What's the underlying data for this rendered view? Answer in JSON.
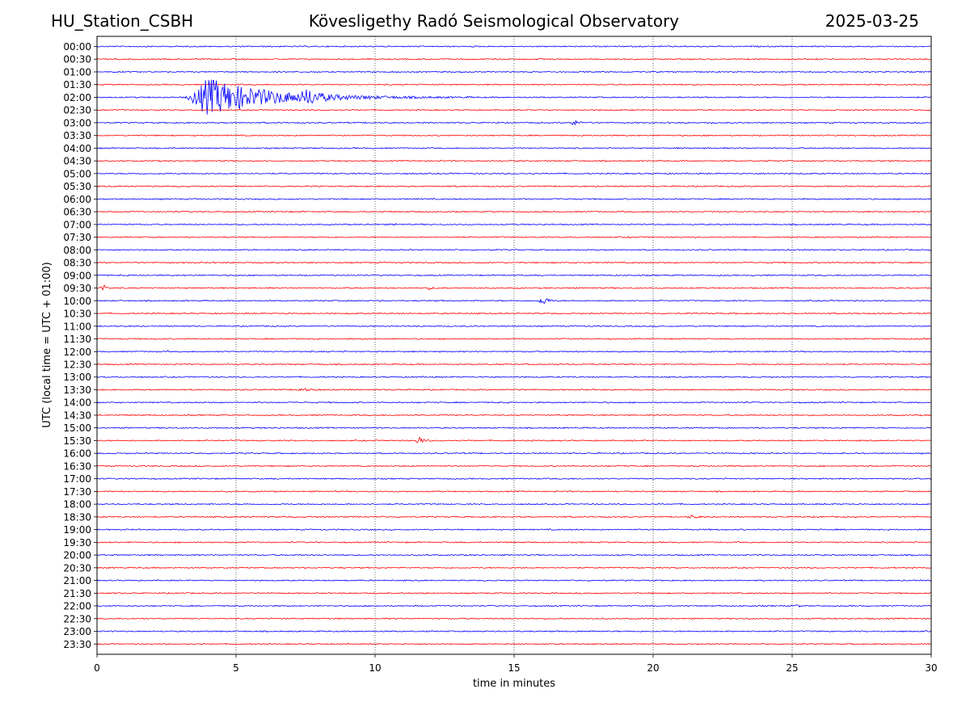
{
  "header": {
    "station": "HU_Station_CSBH",
    "observatory": "Kövesligethy Radó Seismological Observatory",
    "date": "2025-03-25"
  },
  "chart_data": {
    "type": "line",
    "subtype": "helicorder",
    "xlabel": "time in minutes",
    "ylabel": "UTC (local time = UTC + 01:00)",
    "xlim": [
      0,
      30
    ],
    "x_ticks": [
      0,
      5,
      10,
      15,
      20,
      25,
      30
    ],
    "x_tick_labels": [
      "0",
      "5",
      "10",
      "15",
      "20",
      "25",
      "30"
    ],
    "vertical_grid": "dotted at every 5 minutes",
    "row_labels": [
      "00:00",
      "00:30",
      "01:00",
      "01:30",
      "02:00",
      "02:30",
      "03:00",
      "03:30",
      "04:00",
      "04:30",
      "05:00",
      "05:30",
      "06:00",
      "06:30",
      "07:00",
      "07:30",
      "08:00",
      "08:30",
      "09:00",
      "09:30",
      "10:00",
      "10:30",
      "11:00",
      "11:30",
      "12:00",
      "12:30",
      "13:00",
      "13:30",
      "14:00",
      "14:30",
      "15:00",
      "15:30",
      "16:00",
      "16:30",
      "17:00",
      "17:30",
      "18:00",
      "18:30",
      "19:00",
      "19:30",
      "20:00",
      "20:30",
      "21:00",
      "21:30",
      "22:00",
      "22:30",
      "23:00",
      "23:30"
    ],
    "row_colors": [
      "#0000ff",
      "#ff0000"
    ],
    "noise_amplitude": 1.0,
    "events": [
      {
        "row": "02:00",
        "start_min": 3.1,
        "peak_min": 3.95,
        "end_min": 13.5,
        "peak_amplitude": 26
      },
      {
        "row": "02:00",
        "start_min": 7.2,
        "peak_min": 7.6,
        "end_min": 9.0,
        "peak_amplitude": 8
      },
      {
        "row": "03:00",
        "start_min": 17.0,
        "peak_min": 17.1,
        "end_min": 17.8,
        "peak_amplitude": 5
      },
      {
        "row": "07:00",
        "start_min": 10.6,
        "peak_min": 10.7,
        "end_min": 10.9,
        "peak_amplitude": 2
      },
      {
        "row": "09:30",
        "start_min": 0.0,
        "peak_min": 0.25,
        "end_min": 0.6,
        "peak_amplitude": 4
      },
      {
        "row": "09:30",
        "start_min": 11.7,
        "peak_min": 11.85,
        "end_min": 12.7,
        "peak_amplitude": 2
      },
      {
        "row": "10:00",
        "start_min": 15.8,
        "peak_min": 16.05,
        "end_min": 16.8,
        "peak_amplitude": 6
      },
      {
        "row": "13:30",
        "start_min": 7.0,
        "peak_min": 7.4,
        "end_min": 8.4,
        "peak_amplitude": 2
      },
      {
        "row": "15:30",
        "start_min": 11.4,
        "peak_min": 11.6,
        "end_min": 12.1,
        "peak_amplitude": 6
      },
      {
        "row": "18:30",
        "start_min": 21.2,
        "peak_min": 21.4,
        "end_min": 22.2,
        "peak_amplitude": 2.5
      },
      {
        "row": "22:00",
        "start_min": 25.1,
        "peak_min": 25.2,
        "end_min": 25.4,
        "peak_amplitude": 3
      }
    ]
  }
}
